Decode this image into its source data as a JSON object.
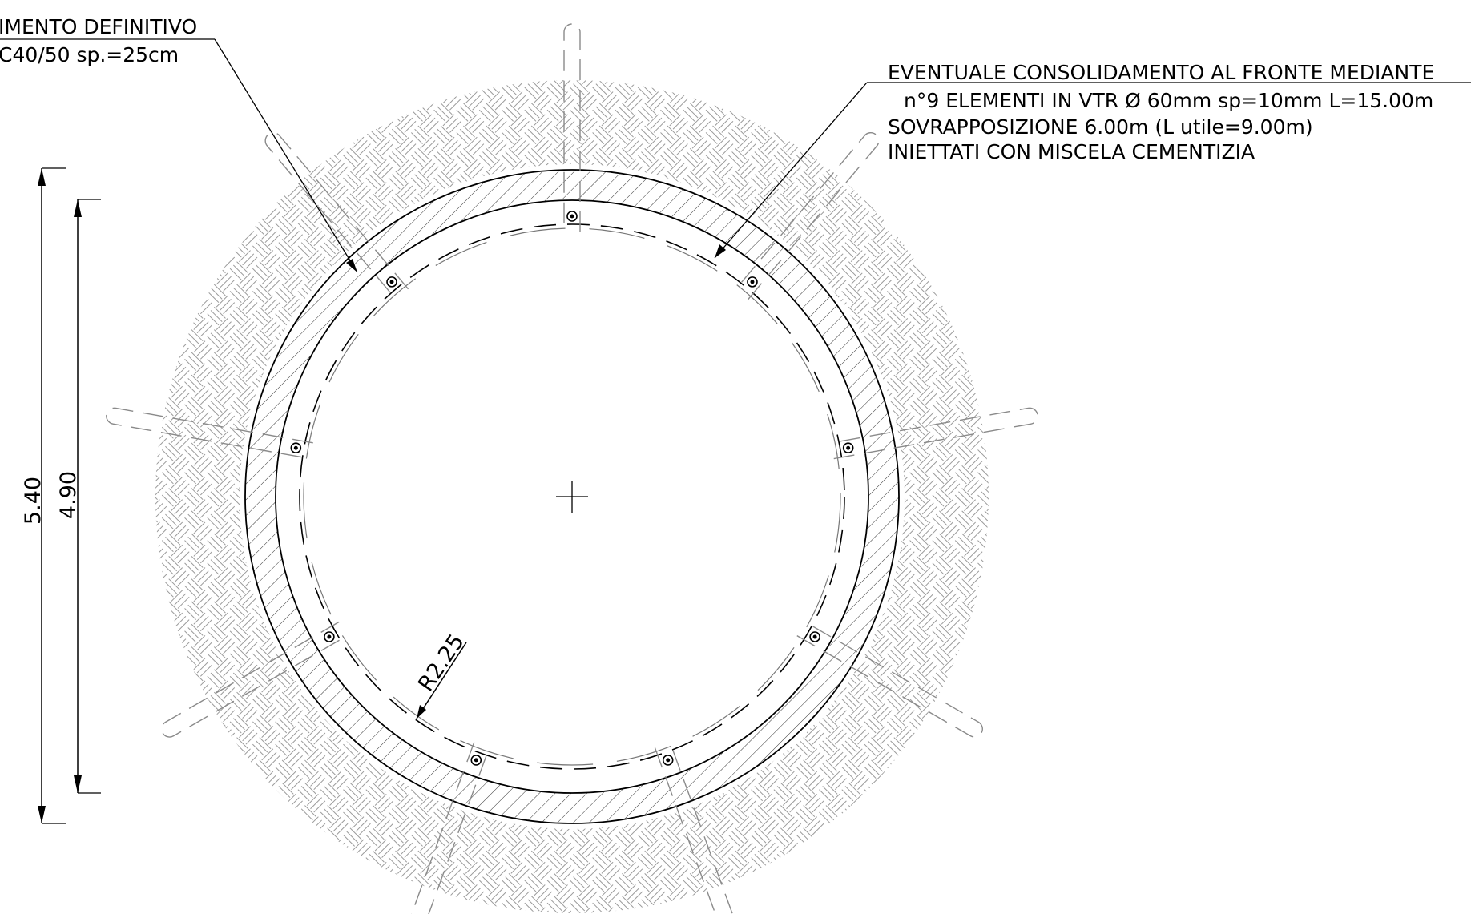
{
  "annotations": {
    "lining": {
      "line1": "IMENTO  DEFINITIVO",
      "line2": "C40/50  sp.=25cm"
    },
    "consolidation": {
      "line1": "EVENTUALE  CONSOLIDAMENTO  AL  FRONTE  MEDIANTE",
      "line2": "n°9  ELEMENTI  IN  VTR  Ø  60mm  sp=10mm  L=15.00m",
      "line3": "SOVRAPPOSIZIONE  6.00m  (L  utile=9.00m)",
      "line4": "INIETTATI  CON  MISCELA  CEMENTIZIA"
    }
  },
  "dimensions": {
    "outer_height": "5.40",
    "inner_height": "4.90",
    "radius": "R2.25"
  },
  "colors": {
    "line": "#000000",
    "ground_hatch": "#9a9a9a",
    "lining_hatch": "#333333",
    "element_center_lines": "#8a8a8a"
  },
  "vtr_elements": {
    "count": 9
  }
}
